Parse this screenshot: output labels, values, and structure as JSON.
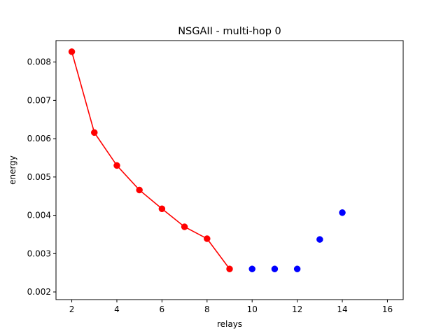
{
  "chart_data": {
    "type": "scatter",
    "title": "NSGAII - multi-hop 0",
    "xlabel": "relays",
    "ylabel": "energy",
    "xlim": [
      1.3,
      16.7
    ],
    "ylim": [
      0.0018,
      0.00856
    ],
    "xticks": [
      2,
      4,
      6,
      8,
      10,
      12,
      14,
      16
    ],
    "yticks": [
      0.002,
      0.003,
      0.004,
      0.005,
      0.006,
      0.007,
      0.008
    ],
    "ytick_labels": [
      "0.002",
      "0.003",
      "0.004",
      "0.005",
      "0.006",
      "0.007",
      "0.008"
    ],
    "grid": false,
    "series": [
      {
        "color": "#ff0000",
        "style": "line-marker",
        "x": [
          2,
          3,
          4,
          5,
          6,
          7,
          8,
          9
        ],
        "y": [
          0.00827,
          0.00616,
          0.0053,
          0.00466,
          0.00417,
          0.0037,
          0.00339,
          0.0026
        ]
      },
      {
        "color": "#0000ff",
        "style": "marker",
        "x": [
          10,
          11,
          12,
          13,
          14
        ],
        "y": [
          0.0026,
          0.0026,
          0.0026,
          0.00337,
          0.00407
        ]
      }
    ]
  }
}
